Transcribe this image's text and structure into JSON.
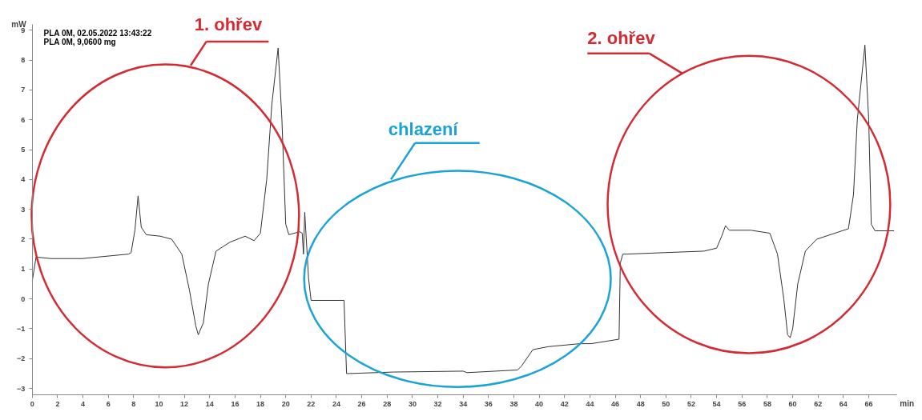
{
  "chart_data": {
    "type": "line",
    "xlabel": "min",
    "ylabel": "mW",
    "annotations": [
      "PLA 0M, 02.05.2022 13:43:22",
      "PLA 0M, 9,0600 mg",
      "1. ohřev",
      "chlazení",
      "2. ohřev"
    ],
    "x": [
      0,
      0.3,
      1.5,
      3.9,
      7.6,
      7.8,
      8.1,
      8.35,
      8.6,
      9.0,
      10.1,
      11,
      11.8,
      12.4,
      12.9,
      13.1,
      13.5,
      13.9,
      14.5,
      15.6,
      16.8,
      17.5,
      18.0,
      18.5,
      18.9,
      19.4,
      19.7,
      20.0,
      20.25,
      21.1,
      21.3,
      21.4,
      21.5,
      21.8,
      22.0,
      24.6,
      24.8,
      25.0,
      28.5,
      34,
      34.3,
      35.2,
      38.3,
      38.6,
      39.5,
      40.7,
      43.2,
      44.1,
      46.3,
      46.4,
      46.6,
      46.9,
      49.9,
      53,
      54,
      54.4,
      54.7,
      55,
      56.7,
      58.2,
      58.8,
      59.3,
      59.6,
      59.8,
      60,
      60.4,
      61,
      61.9,
      64.4,
      64.8,
      65.1,
      65.7,
      66,
      66.2,
      66.5,
      68
    ],
    "series": [
      {
        "color": "#333333",
        "values": [
          0.6,
          1.4,
          1.35,
          1.35,
          1.5,
          1.55,
          2.3,
          3.45,
          2.4,
          2.15,
          2.1,
          2.0,
          1.5,
          0.3,
          -0.9,
          -1.2,
          -0.8,
          0.5,
          1.6,
          1.9,
          2.1,
          1.95,
          2.2,
          4.0,
          6.5,
          8.4,
          6.0,
          2.5,
          2.15,
          2.25,
          2.2,
          1.5,
          2.9,
          0.7,
          -0.05,
          -0.05,
          -2.5,
          -2.5,
          -2.45,
          -2.42,
          -2.47,
          -2.45,
          -2.38,
          -2.25,
          -1.7,
          -1.6,
          -1.5,
          -1.5,
          -1.35,
          1.2,
          1.5,
          1.5,
          1.55,
          1.6,
          1.7,
          2.1,
          2.45,
          2.3,
          2.3,
          2.2,
          1.5,
          0,
          -1.2,
          -1.3,
          -1.0,
          0.5,
          1.6,
          2.0,
          2.35,
          3.5,
          6.0,
          8.5,
          6.0,
          2.5,
          2.28,
          2.28
        ]
      }
    ],
    "xlim": [
      0,
      68.2
    ],
    "ylim": [
      -3.2,
      9.2
    ],
    "xticks": [
      0,
      2,
      4,
      6,
      8,
      10,
      12,
      14,
      16,
      18,
      20,
      22,
      24,
      26,
      28,
      30,
      32,
      34,
      36,
      38,
      40,
      42,
      44,
      46,
      48,
      50,
      52,
      54,
      56,
      58,
      60,
      62,
      64,
      66
    ],
    "yticks": [
      -3,
      -2,
      -1,
      0,
      1,
      2,
      3,
      4,
      5,
      6,
      7,
      8,
      9
    ],
    "grid": false,
    "marker": "none",
    "line_style": "solid"
  }
}
